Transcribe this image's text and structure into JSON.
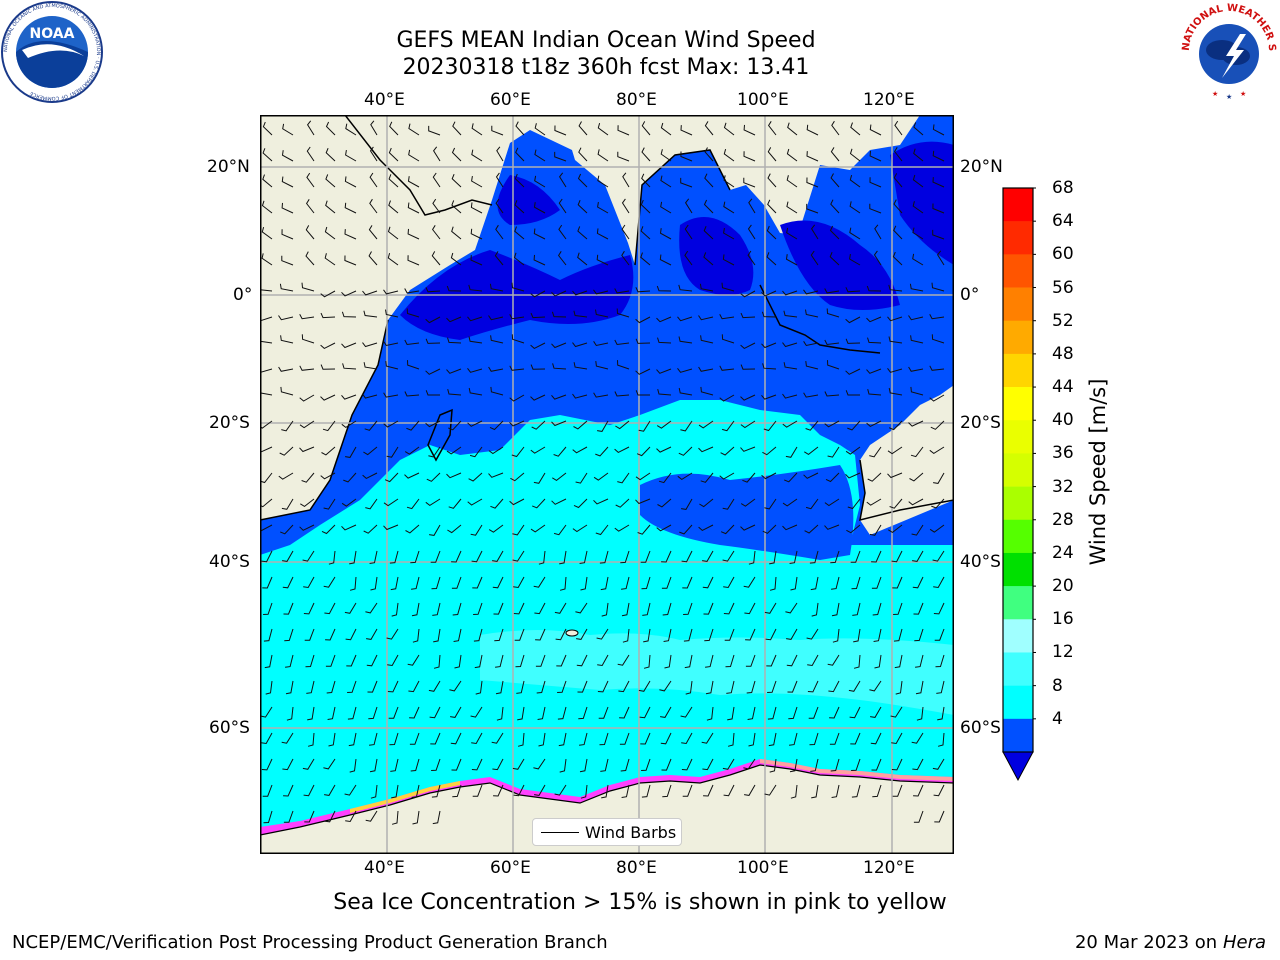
{
  "title": {
    "line1": "GEFS MEAN Indian Ocean Wind Speed",
    "line2": "20230318 t18z 360h fcst   Max: 13.41"
  },
  "map": {
    "lon_ticks": [
      "40°E",
      "60°E",
      "80°E",
      "100°E",
      "120°E"
    ],
    "lat_ticks": [
      "20°N",
      "0°",
      "20°S",
      "40°S",
      "60°S"
    ],
    "legend_label": "Wind Barbs",
    "land_color": "#efefde",
    "ocean_colors": {
      "4-8": "#0050ff",
      "0-4": "#0000e0",
      "8-12": "#00ffff",
      "12-16": "#40ffff"
    },
    "sea_ice_colors": [
      "#ff40ff",
      "#ffa0a0",
      "#ffd040"
    ]
  },
  "colorbar": {
    "label": "Wind Speed [m/s]",
    "ticks": [
      "68",
      "64",
      "60",
      "56",
      "52",
      "48",
      "44",
      "40",
      "36",
      "32",
      "28",
      "24",
      "20",
      "16",
      "12",
      "8",
      "4"
    ],
    "colors": [
      "#ff0000",
      "#ff2a00",
      "#ff5500",
      "#ff8000",
      "#ffaa00",
      "#ffd500",
      "#ffff00",
      "#eaff00",
      "#d5ff00",
      "#aaff00",
      "#55ff00",
      "#00e000",
      "#40ff80",
      "#a0ffff",
      "#40ffff",
      "#00ffff",
      "#0050ff"
    ],
    "extend_color": "#0000e0"
  },
  "note": "Sea Ice Concentration > 15% is shown in pink to yellow",
  "footer": {
    "left": "NCEP/EMC/Verification Post Processing Product Generation Branch",
    "date": "20 Mar 2023 on",
    "host": "Hera"
  },
  "logos": {
    "noaa_text": "NOAA",
    "noaa_ring": "NATIONAL OCEANIC AND ATMOSPHERIC ADMINISTRATION · U.S. DEPARTMENT OF COMMERCE",
    "nws_ring": "NATIONAL WEATHER SERVICE"
  }
}
